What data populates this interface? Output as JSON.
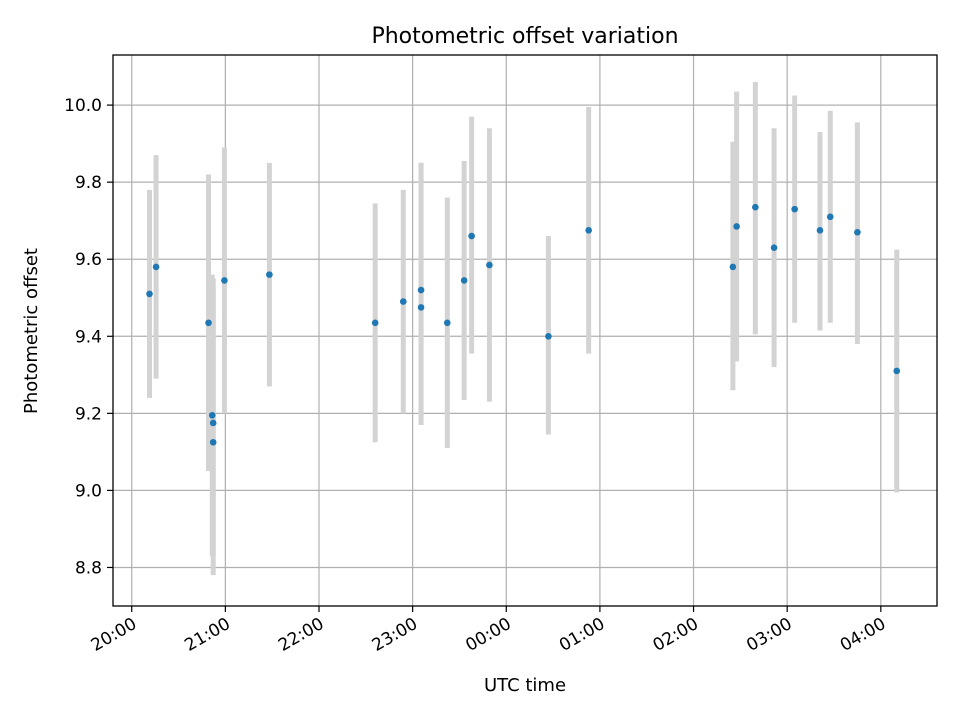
{
  "chart_data": {
    "type": "scatter",
    "title": "Photometric offset variation",
    "xlabel": "UTC time",
    "ylabel": "Photometric offset",
    "x_unit": "hours since 20:00 UTC",
    "xlim": [
      -0.2,
      8.6
    ],
    "ylim": [
      8.7,
      10.13
    ],
    "xticks": [
      {
        "value": 0,
        "label": "20:00"
      },
      {
        "value": 1,
        "label": "21:00"
      },
      {
        "value": 2,
        "label": "22:00"
      },
      {
        "value": 3,
        "label": "23:00"
      },
      {
        "value": 4,
        "label": "00:00"
      },
      {
        "value": 5,
        "label": "01:00"
      },
      {
        "value": 6,
        "label": "02:00"
      },
      {
        "value": 7,
        "label": "03:00"
      },
      {
        "value": 8,
        "label": "04:00"
      }
    ],
    "yticks": [
      {
        "value": 8.8,
        "label": "8.8"
      },
      {
        "value": 9.0,
        "label": "9.0"
      },
      {
        "value": 9.2,
        "label": "9.2"
      },
      {
        "value": 9.4,
        "label": "9.4"
      },
      {
        "value": 9.6,
        "label": "9.6"
      },
      {
        "value": 9.8,
        "label": "9.8"
      },
      {
        "value": 10.0,
        "label": "10.0"
      }
    ],
    "grid": true,
    "colors": {
      "marker": "#1f77b4",
      "errorbar": "#d3d3d3",
      "grid": "#b0b0b0"
    },
    "points": [
      {
        "x": 0.19,
        "y": 9.51,
        "ylow": 9.24,
        "yhigh": 9.78
      },
      {
        "x": 0.26,
        "y": 9.58,
        "ylow": 9.29,
        "yhigh": 9.87
      },
      {
        "x": 0.82,
        "y": 9.435,
        "ylow": 9.05,
        "yhigh": 9.82
      },
      {
        "x": 0.86,
        "y": 9.195,
        "ylow": 8.83,
        "yhigh": 9.56
      },
      {
        "x": 0.87,
        "y": 9.175,
        "ylow": 8.78,
        "yhigh": 9.55
      },
      {
        "x": 0.87,
        "y": 9.125,
        "ylow": 8.83,
        "yhigh": 9.53
      },
      {
        "x": 0.99,
        "y": 9.545,
        "ylow": 9.2,
        "yhigh": 9.89
      },
      {
        "x": 1.47,
        "y": 9.56,
        "ylow": 9.27,
        "yhigh": 9.85
      },
      {
        "x": 2.6,
        "y": 9.435,
        "ylow": 9.125,
        "yhigh": 9.745
      },
      {
        "x": 2.9,
        "y": 9.49,
        "ylow": 9.2,
        "yhigh": 9.78
      },
      {
        "x": 3.09,
        "y": 9.52,
        "ylow": 9.17,
        "yhigh": 9.85
      },
      {
        "x": 3.09,
        "y": 9.475,
        "ylow": 9.17,
        "yhigh": 9.85
      },
      {
        "x": 3.37,
        "y": 9.435,
        "ylow": 9.11,
        "yhigh": 9.76
      },
      {
        "x": 3.55,
        "y": 9.545,
        "ylow": 9.235,
        "yhigh": 9.855
      },
      {
        "x": 3.63,
        "y": 9.66,
        "ylow": 9.355,
        "yhigh": 9.97
      },
      {
        "x": 3.82,
        "y": 9.585,
        "ylow": 9.23,
        "yhigh": 9.94
      },
      {
        "x": 4.45,
        "y": 9.4,
        "ylow": 9.145,
        "yhigh": 9.66
      },
      {
        "x": 4.88,
        "y": 9.675,
        "ylow": 9.355,
        "yhigh": 9.995
      },
      {
        "x": 6.42,
        "y": 9.58,
        "ylow": 9.26,
        "yhigh": 9.905
      },
      {
        "x": 6.46,
        "y": 9.685,
        "ylow": 9.335,
        "yhigh": 10.035
      },
      {
        "x": 6.66,
        "y": 9.735,
        "ylow": 9.405,
        "yhigh": 10.06
      },
      {
        "x": 6.86,
        "y": 9.63,
        "ylow": 9.32,
        "yhigh": 9.94
      },
      {
        "x": 7.08,
        "y": 9.73,
        "ylow": 9.435,
        "yhigh": 10.025
      },
      {
        "x": 7.35,
        "y": 9.675,
        "ylow": 9.415,
        "yhigh": 9.93
      },
      {
        "x": 7.46,
        "y": 9.71,
        "ylow": 9.435,
        "yhigh": 9.985
      },
      {
        "x": 7.75,
        "y": 9.67,
        "ylow": 9.38,
        "yhigh": 9.955
      },
      {
        "x": 8.17,
        "y": 9.31,
        "ylow": 8.995,
        "yhigh": 9.625
      }
    ]
  }
}
